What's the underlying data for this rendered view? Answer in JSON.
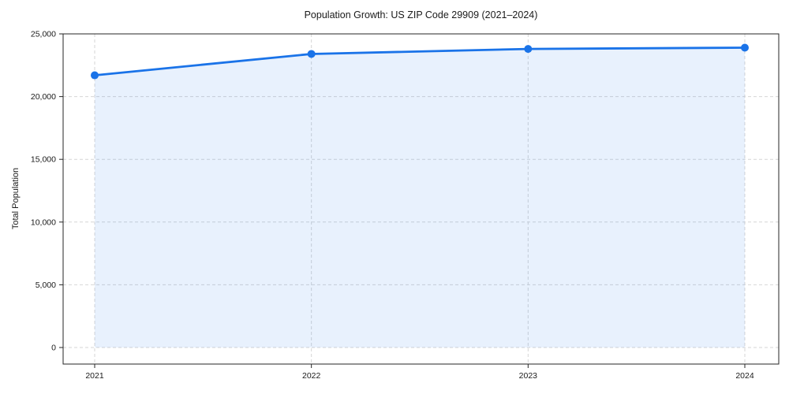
{
  "chart_data": {
    "type": "line",
    "title": "Population Growth: US ZIP Code 29909 (2021–2024)",
    "xlabel": "",
    "ylabel": "Total Population",
    "x": [
      2021,
      2022,
      2023,
      2024
    ],
    "xtick_labels": [
      "2021",
      "2022",
      "2023",
      "2024"
    ],
    "series": [
      {
        "name": "Total Population",
        "values": [
          21700,
          23400,
          23800,
          23900
        ]
      }
    ],
    "ylim": [
      0,
      25000
    ],
    "yticks": [
      0,
      5000,
      10000,
      15000,
      20000,
      25000
    ],
    "ytick_labels": [
      "0",
      "5,000",
      "10,000",
      "15,000",
      "20,000",
      "25,000"
    ],
    "grid": true,
    "grid_style": "dashed",
    "legend": "none",
    "area_fill": true,
    "marker": "circle",
    "colors": {
      "line": "#1a73e8",
      "marker": "#1a73e8",
      "area_fill": "#1a73e8",
      "area_fill_opacity": 0.1,
      "grid": "#d6d6d6",
      "frame": "#262626",
      "text": "#1a1a1a",
      "background": "#ffffff"
    }
  }
}
